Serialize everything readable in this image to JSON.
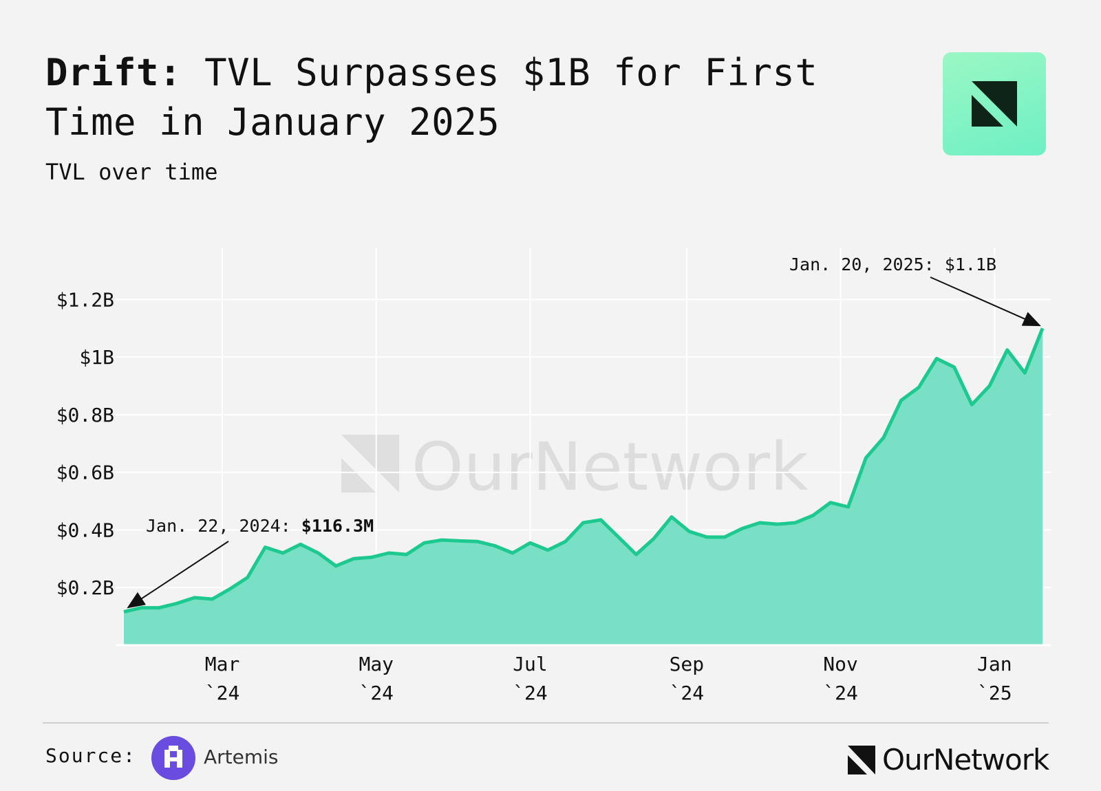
{
  "header": {
    "title_brand": "Drift:",
    "title_rest": " TVL Surpasses $1B for First Time in January 2025",
    "subtitle": "TVL over time",
    "logo_icon": "ournetwork-logo-icon"
  },
  "watermark": {
    "text": "OurNetwork"
  },
  "footer": {
    "source_label": "Source:",
    "source_name": "Artemis",
    "source_icon": "artemis-logo-icon",
    "brand_name": "OurNetwork",
    "brand_icon": "ournetwork-logo-icon"
  },
  "colors": {
    "line": "#1dc98f",
    "area": "#79e0c6",
    "grid": "#ffffff",
    "background": "#f3f3f3"
  },
  "chart_data": {
    "type": "area",
    "title": "",
    "xlabel": "",
    "ylabel": "",
    "x": [
      "2024-01-22",
      "2024-01-29",
      "2024-02-05",
      "2024-02-12",
      "2024-02-19",
      "2024-02-26",
      "2024-03-04",
      "2024-03-11",
      "2024-03-18",
      "2024-03-25",
      "2024-04-01",
      "2024-04-08",
      "2024-04-15",
      "2024-04-22",
      "2024-04-29",
      "2024-05-06",
      "2024-05-13",
      "2024-05-20",
      "2024-05-27",
      "2024-06-03",
      "2024-06-10",
      "2024-06-17",
      "2024-06-24",
      "2024-07-01",
      "2024-07-08",
      "2024-07-15",
      "2024-07-22",
      "2024-07-29",
      "2024-08-05",
      "2024-08-12",
      "2024-08-19",
      "2024-08-26",
      "2024-09-02",
      "2024-09-09",
      "2024-09-16",
      "2024-09-23",
      "2024-09-30",
      "2024-10-07",
      "2024-10-14",
      "2024-10-21",
      "2024-10-28",
      "2024-11-04",
      "2024-11-11",
      "2024-11-18",
      "2024-11-25",
      "2024-12-02",
      "2024-12-09",
      "2024-12-16",
      "2024-12-23",
      "2024-12-30",
      "2025-01-06",
      "2025-01-13",
      "2025-01-20"
    ],
    "series": [
      {
        "values": [
          0.116,
          0.13,
          0.13,
          0.145,
          0.165,
          0.16,
          0.195,
          0.235,
          0.34,
          0.32,
          0.35,
          0.32,
          0.275,
          0.3,
          0.305,
          0.32,
          0.315,
          0.355,
          0.365,
          0.362,
          0.36,
          0.345,
          0.32,
          0.355,
          0.33,
          0.36,
          0.425,
          0.435,
          0.375,
          0.315,
          0.37,
          0.445,
          0.395,
          0.375,
          0.375,
          0.405,
          0.425,
          0.42,
          0.425,
          0.45,
          0.495,
          0.48,
          0.65,
          0.72,
          0.85,
          0.895,
          0.995,
          0.965,
          0.835,
          0.9,
          1.025,
          0.945,
          1.1
        ]
      }
    ],
    "y_tick_labels": [
      "$0.2B",
      "$0.4B",
      "$0.6B",
      "$0.8B",
      "$1B",
      "$1.2B"
    ],
    "y_ticks": [
      0.2,
      0.4,
      0.6,
      0.8,
      1.0,
      1.2
    ],
    "ylim": [
      0,
      1.38
    ],
    "x_ticks": [
      {
        "date": "2024-03-01",
        "month": "Mar",
        "year": "`24"
      },
      {
        "date": "2024-05-01",
        "month": "May",
        "year": "`24"
      },
      {
        "date": "2024-07-01",
        "month": "Jul",
        "year": "`24"
      },
      {
        "date": "2024-09-01",
        "month": "Sep",
        "year": "`24"
      },
      {
        "date": "2024-11-01",
        "month": "Nov",
        "year": "`24"
      },
      {
        "date": "2025-01-01",
        "month": "Jan",
        "year": "`25"
      }
    ],
    "grid": true,
    "annotations": [
      {
        "date": "2024-01-22",
        "value": 0.1163,
        "prefix": "Jan. 22, 2024: ",
        "bold": "$116.3M"
      },
      {
        "date": "2025-01-20",
        "value": 1.1,
        "prefix": "Jan. 20, 2025: $1.1B",
        "bold": ""
      }
    ]
  }
}
